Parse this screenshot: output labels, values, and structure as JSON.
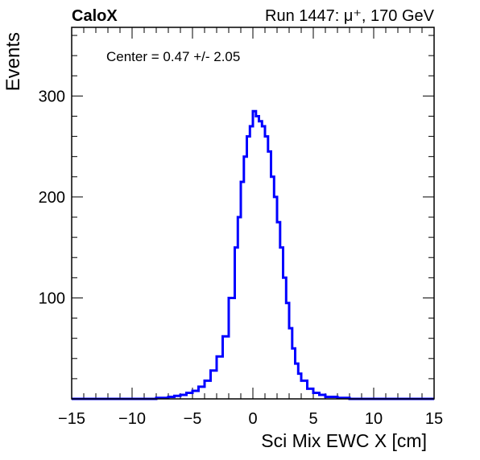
{
  "header": {
    "brand": "CaloX",
    "run_info": "Run 1447:   μ⁺, 170 GeV"
  },
  "annotation": {
    "text": "Center = 0.47 +/- 2.05"
  },
  "chart_data": {
    "type": "line",
    "title": "",
    "xlabel": "Sci Mix EWC X [cm]",
    "ylabel": "Events",
    "xlim": [
      -15,
      15
    ],
    "ylim": [
      0,
      368
    ],
    "x_ticks": [
      -15,
      -10,
      -5,
      0,
      5,
      10,
      15
    ],
    "x_tick_labels": [
      "−15",
      "−10",
      "−5",
      "0",
      "5",
      "10",
      "15"
    ],
    "y_ticks": [
      100,
      200,
      300
    ],
    "y_tick_labels": [
      "100",
      "200",
      "300"
    ],
    "grid": false,
    "line_color": "#0000ff",
    "series": [
      {
        "x": [
          -15,
          -8,
          -7,
          -6.5,
          -6,
          -5.5,
          -5,
          -4.5,
          -4,
          -3.5,
          -3,
          -2.5,
          -2,
          -1.5,
          -1.25,
          -1,
          -0.75,
          -0.5,
          -0.25,
          0,
          0.25,
          0.5,
          0.75,
          1,
          1.25,
          1.5,
          1.75,
          2,
          2.25,
          2.5,
          2.75,
          3,
          3.25,
          3.5,
          3.75,
          4,
          4.5,
          5,
          5.5,
          6,
          7,
          8,
          15
        ],
        "y": [
          0,
          1,
          2,
          3,
          4,
          6,
          8,
          12,
          18,
          28,
          42,
          62,
          100,
          150,
          180,
          215,
          240,
          260,
          270,
          285,
          280,
          275,
          270,
          260,
          245,
          220,
          200,
          175,
          150,
          120,
          95,
          70,
          50,
          35,
          25,
          18,
          10,
          6,
          4,
          2,
          1,
          0,
          0
        ]
      }
    ]
  }
}
